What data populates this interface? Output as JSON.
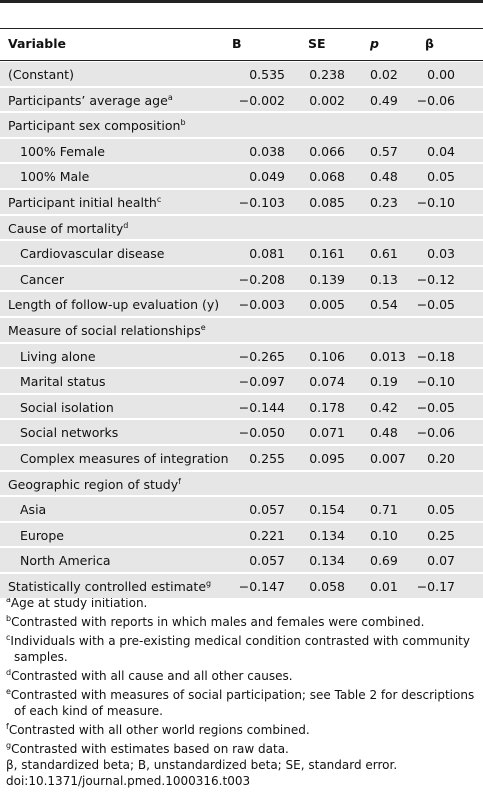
{
  "table": {
    "columns": [
      "Variable",
      "B",
      "SE",
      "p",
      "β"
    ],
    "rows": [
      {
        "label": "(Constant)",
        "values": [
          "0.535",
          "0.238",
          "0.02",
          "0.00"
        ]
      },
      {
        "label": "Participants’ average age",
        "note": "a",
        "values": [
          "−0.002",
          "0.002",
          "0.49",
          "−0.06"
        ]
      },
      {
        "label": "Participant sex composition",
        "note": "b",
        "items": [
          {
            "label": "100% Female",
            "values": [
              "0.038",
              "0.066",
              "0.57",
              "0.04"
            ]
          },
          {
            "label": "100% Male",
            "values": [
              "0.049",
              "0.068",
              "0.48",
              "0.05"
            ]
          }
        ]
      },
      {
        "label": "Participant initial health",
        "note": "c",
        "values": [
          "−0.103",
          "0.085",
          "0.23",
          "−0.10"
        ]
      },
      {
        "label": "Cause of mortality",
        "note": "d",
        "items": [
          {
            "label": "Cardiovascular disease",
            "values": [
              "0.081",
              "0.161",
              "0.61",
              "0.03"
            ]
          },
          {
            "label": "Cancer",
            "values": [
              "−0.208",
              "0.139",
              "0.13",
              "−0.12"
            ]
          }
        ]
      },
      {
        "label": "Length of follow-up evaluation (y)",
        "values": [
          "−0.003",
          "0.005",
          "0.54",
          "−0.05"
        ]
      },
      {
        "label": "Measure of social relationships",
        "note": "e",
        "items": [
          {
            "label": "Living alone",
            "values": [
              "−0.265",
              "0.106",
              "0.013",
              "−0.18"
            ]
          },
          {
            "label": "Marital status",
            "values": [
              "−0.097",
              "0.074",
              "0.19",
              "−0.10"
            ]
          },
          {
            "label": "Social isolation",
            "values": [
              "−0.144",
              "0.178",
              "0.42",
              "−0.05"
            ]
          },
          {
            "label": "Social networks",
            "values": [
              "−0.050",
              "0.071",
              "0.48",
              "−0.06"
            ]
          },
          {
            "label": "Complex measures of integration",
            "values": [
              "0.255",
              "0.095",
              "0.007",
              "0.20"
            ]
          }
        ]
      },
      {
        "label": "Geographic region of study",
        "note": "f",
        "items": [
          {
            "label": "Asia",
            "values": [
              "0.057",
              "0.154",
              "0.71",
              "0.05"
            ]
          },
          {
            "label": "Europe",
            "values": [
              "0.221",
              "0.134",
              "0.10",
              "0.25"
            ]
          },
          {
            "label": "North America",
            "values": [
              "0.057",
              "0.134",
              "0.69",
              "0.07"
            ]
          }
        ]
      },
      {
        "label": "Statistically controlled estimate",
        "note": "g",
        "values": [
          "−0.147",
          "0.058",
          "0.01",
          "−0.17"
        ]
      }
    ]
  },
  "footnotes": [
    {
      "mark": "a",
      "text": "Age at study initiation."
    },
    {
      "mark": "b",
      "text": "Contrasted with reports in which males and females were combined."
    },
    {
      "mark": "c",
      "text": "Individuals with a pre-existing medical condition contrasted with community samples."
    },
    {
      "mark": "d",
      "text": "Contrasted with all cause and all other causes."
    },
    {
      "mark": "e",
      "text": "Contrasted with measures of social participation; see Table 2 for descriptions of each kind of measure."
    },
    {
      "mark": "f",
      "text": "Contrasted with all other world regions combined."
    },
    {
      "mark": "g",
      "text": "Contrasted with estimates based on raw data."
    }
  ],
  "abbreviations": "β, standardized beta; B, unstandardized beta; SE, standard error.",
  "doi": "doi:10.1371/journal.pmed.1000316.t003"
}
